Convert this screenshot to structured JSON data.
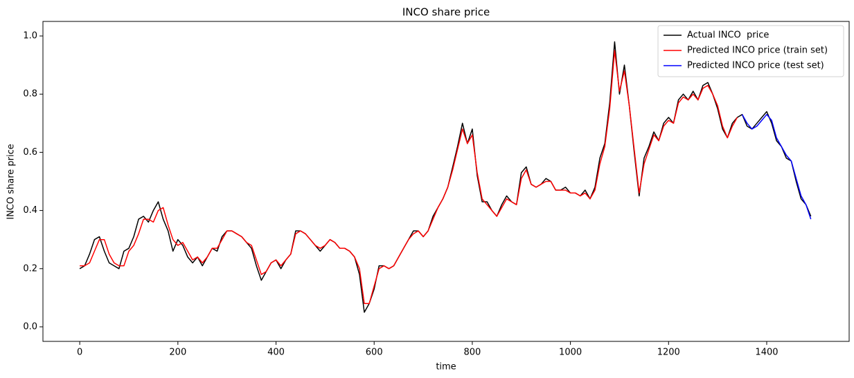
{
  "chart_data": {
    "type": "line",
    "title": "INCO share price",
    "xlabel": "time",
    "ylabel": "INCO share price",
    "xlim": [
      -75,
      1568
    ],
    "ylim": [
      -0.05,
      1.05
    ],
    "xticks": [
      0,
      200,
      400,
      600,
      800,
      1000,
      1200,
      1400
    ],
    "yticks": [
      {
        "value": 0,
        "label": "0.0"
      },
      {
        "value": 0.2,
        "label": "0.2"
      },
      {
        "value": 0.4,
        "label": "0.4"
      },
      {
        "value": 0.6,
        "label": "0.6"
      },
      {
        "value": 0.8,
        "label": "0.8"
      },
      {
        "value": 1,
        "label": "1.0"
      }
    ],
    "legend": "upper right",
    "series": [
      {
        "name": "Actual INCO  price",
        "color": "#000000",
        "x": [
          0,
          10,
          20,
          30,
          40,
          50,
          60,
          70,
          80,
          90,
          100,
          110,
          120,
          130,
          140,
          150,
          160,
          170,
          180,
          190,
          200,
          210,
          220,
          230,
          240,
          250,
          260,
          270,
          280,
          290,
          300,
          310,
          320,
          330,
          340,
          350,
          360,
          370,
          380,
          390,
          400,
          410,
          420,
          430,
          440,
          450,
          460,
          470,
          480,
          490,
          500,
          510,
          520,
          530,
          540,
          550,
          560,
          570,
          580,
          590,
          600,
          610,
          620,
          630,
          640,
          650,
          660,
          670,
          680,
          690,
          700,
          710,
          720,
          730,
          740,
          750,
          760,
          770,
          780,
          790,
          800,
          810,
          820,
          830,
          840,
          850,
          860,
          870,
          880,
          890,
          900,
          910,
          920,
          930,
          940,
          950,
          960,
          970,
          980,
          990,
          1000,
          1010,
          1020,
          1030,
          1040,
          1050,
          1060,
          1070,
          1080,
          1090,
          1100,
          1110,
          1120,
          1130,
          1140,
          1150,
          1160,
          1170,
          1180,
          1190,
          1200,
          1210,
          1220,
          1230,
          1240,
          1250,
          1260,
          1270,
          1280,
          1290,
          1300,
          1310,
          1320,
          1330,
          1340,
          1350,
          1360,
          1370,
          1380,
          1390,
          1400,
          1410,
          1420,
          1430,
          1440,
          1450,
          1460,
          1470,
          1480,
          1490
        ],
        "values": [
          0.2,
          0.21,
          0.25,
          0.3,
          0.31,
          0.26,
          0.22,
          0.21,
          0.2,
          0.26,
          0.27,
          0.31,
          0.37,
          0.38,
          0.36,
          0.4,
          0.43,
          0.37,
          0.33,
          0.26,
          0.3,
          0.28,
          0.24,
          0.22,
          0.24,
          0.21,
          0.24,
          0.27,
          0.26,
          0.31,
          0.33,
          0.33,
          0.32,
          0.31,
          0.29,
          0.27,
          0.21,
          0.16,
          0.19,
          0.22,
          0.23,
          0.2,
          0.23,
          0.25,
          0.33,
          0.33,
          0.32,
          0.3,
          0.28,
          0.26,
          0.28,
          0.3,
          0.29,
          0.27,
          0.27,
          0.26,
          0.24,
          0.18,
          0.05,
          0.08,
          0.13,
          0.21,
          0.21,
          0.2,
          0.21,
          0.24,
          0.27,
          0.3,
          0.33,
          0.33,
          0.31,
          0.33,
          0.38,
          0.41,
          0.44,
          0.48,
          0.55,
          0.62,
          0.7,
          0.63,
          0.68,
          0.52,
          0.43,
          0.43,
          0.4,
          0.38,
          0.42,
          0.45,
          0.43,
          0.42,
          0.53,
          0.55,
          0.49,
          0.48,
          0.49,
          0.51,
          0.5,
          0.47,
          0.47,
          0.48,
          0.46,
          0.46,
          0.45,
          0.47,
          0.44,
          0.48,
          0.58,
          0.63,
          0.77,
          0.98,
          0.8,
          0.9,
          0.76,
          0.6,
          0.45,
          0.58,
          0.62,
          0.67,
          0.64,
          0.7,
          0.72,
          0.7,
          0.78,
          0.8,
          0.78,
          0.81,
          0.78,
          0.83,
          0.84,
          0.8,
          0.75,
          0.68,
          0.65,
          0.7,
          0.72,
          0.73,
          0.69,
          0.68,
          0.7,
          0.72,
          0.74,
          0.7,
          0.64,
          0.62,
          0.58,
          0.57,
          0.5,
          0.44,
          0.42,
          0.38
        ]
      },
      {
        "name": "Predicted INCO price (train set)",
        "color": "#ff0000",
        "x": [
          0,
          10,
          20,
          30,
          40,
          50,
          60,
          70,
          80,
          90,
          100,
          110,
          120,
          130,
          140,
          150,
          160,
          170,
          180,
          190,
          200,
          210,
          220,
          230,
          240,
          250,
          260,
          270,
          280,
          290,
          300,
          310,
          320,
          330,
          340,
          350,
          360,
          370,
          380,
          390,
          400,
          410,
          420,
          430,
          440,
          450,
          460,
          470,
          480,
          490,
          500,
          510,
          520,
          530,
          540,
          550,
          560,
          570,
          580,
          590,
          600,
          610,
          620,
          630,
          640,
          650,
          660,
          670,
          680,
          690,
          700,
          710,
          720,
          730,
          740,
          750,
          760,
          770,
          780,
          790,
          800,
          810,
          820,
          830,
          840,
          850,
          860,
          870,
          880,
          890,
          900,
          910,
          920,
          930,
          940,
          950,
          960,
          970,
          980,
          990,
          1000,
          1010,
          1020,
          1030,
          1040,
          1050,
          1060,
          1070,
          1080,
          1090,
          1100,
          1110,
          1120,
          1130,
          1140,
          1150,
          1160,
          1170,
          1180,
          1190,
          1200,
          1210,
          1220,
          1230,
          1240,
          1250,
          1260,
          1270,
          1280,
          1290,
          1300,
          1310,
          1320,
          1330,
          1340
        ],
        "values": [
          0.21,
          0.21,
          0.22,
          0.26,
          0.3,
          0.3,
          0.25,
          0.22,
          0.21,
          0.21,
          0.26,
          0.28,
          0.32,
          0.37,
          0.37,
          0.36,
          0.4,
          0.41,
          0.35,
          0.3,
          0.28,
          0.29,
          0.26,
          0.23,
          0.24,
          0.22,
          0.24,
          0.27,
          0.27,
          0.3,
          0.33,
          0.33,
          0.32,
          0.31,
          0.29,
          0.28,
          0.23,
          0.18,
          0.19,
          0.22,
          0.23,
          0.21,
          0.23,
          0.25,
          0.32,
          0.33,
          0.32,
          0.3,
          0.28,
          0.27,
          0.28,
          0.3,
          0.29,
          0.27,
          0.27,
          0.26,
          0.24,
          0.2,
          0.08,
          0.08,
          0.14,
          0.2,
          0.21,
          0.2,
          0.21,
          0.24,
          0.27,
          0.3,
          0.32,
          0.33,
          0.31,
          0.33,
          0.37,
          0.41,
          0.44,
          0.48,
          0.54,
          0.61,
          0.68,
          0.63,
          0.66,
          0.53,
          0.44,
          0.42,
          0.4,
          0.38,
          0.41,
          0.44,
          0.43,
          0.42,
          0.51,
          0.54,
          0.49,
          0.48,
          0.49,
          0.5,
          0.5,
          0.47,
          0.47,
          0.47,
          0.46,
          0.46,
          0.45,
          0.46,
          0.44,
          0.47,
          0.56,
          0.62,
          0.75,
          0.95,
          0.81,
          0.88,
          0.76,
          0.61,
          0.46,
          0.56,
          0.61,
          0.66,
          0.64,
          0.69,
          0.71,
          0.7,
          0.77,
          0.79,
          0.78,
          0.8,
          0.78,
          0.82,
          0.83,
          0.8,
          0.76,
          0.69,
          0.65,
          0.69,
          0.72
        ]
      },
      {
        "name": "Predicted INCO price (test set)",
        "color": "#0000ff",
        "x": [
          1350,
          1360,
          1370,
          1380,
          1390,
          1400,
          1410,
          1420,
          1430,
          1440,
          1450,
          1460,
          1470,
          1480,
          1490
        ],
        "values": [
          0.73,
          0.7,
          0.68,
          0.69,
          0.71,
          0.73,
          0.71,
          0.65,
          0.62,
          0.59,
          0.57,
          0.51,
          0.45,
          0.42,
          0.37
        ]
      }
    ]
  }
}
